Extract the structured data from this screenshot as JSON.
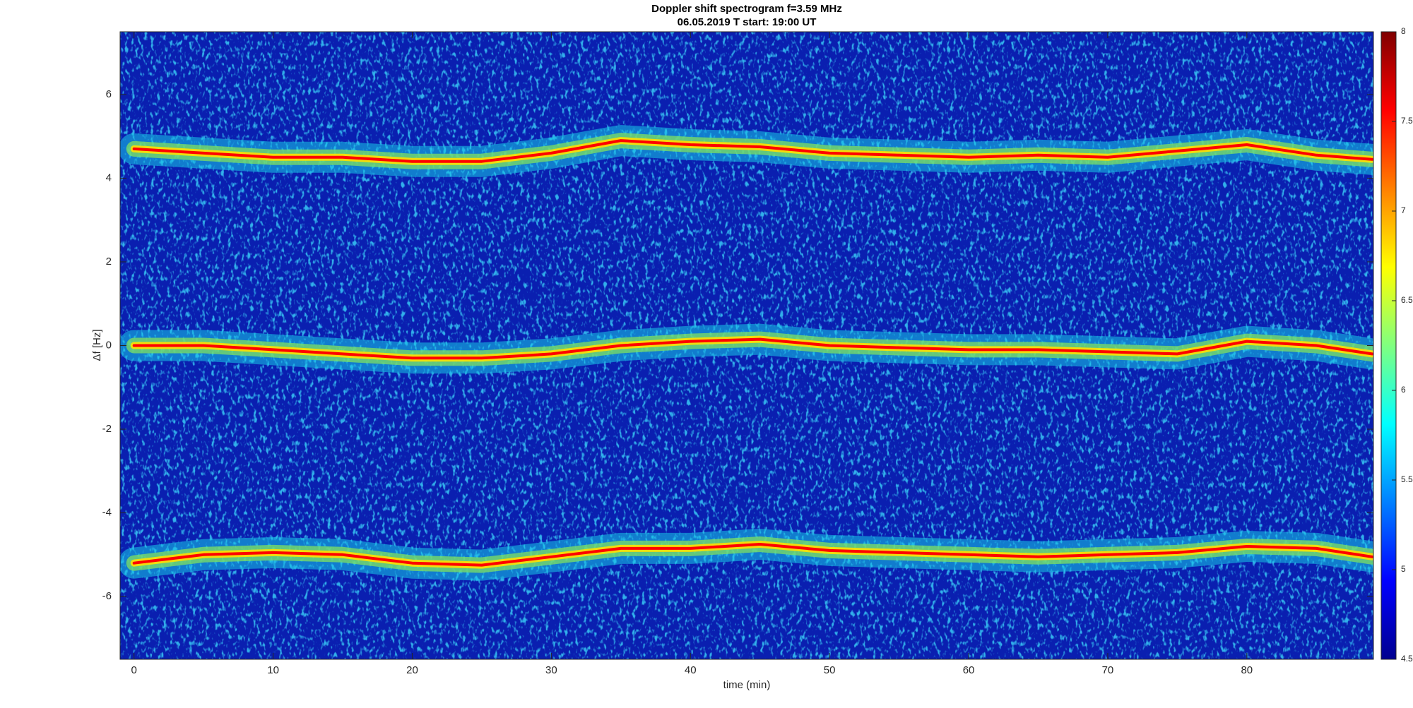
{
  "chart_data": {
    "type": "spectrogram",
    "title": "Doppler shift spectrogram f=3.59 MHz",
    "subtitle": "06.05.2019   T start: 19:00 UT",
    "x_label": "time (min)",
    "y_label": "Δf [Hz]",
    "x": [
      0,
      5,
      10,
      15,
      20,
      25,
      30,
      35,
      40,
      45,
      50,
      55,
      60,
      65,
      70,
      75,
      80,
      85,
      89
    ],
    "series": [
      {
        "color": "#ff0000",
        "values": [
          4.7,
          4.6,
          4.5,
          4.5,
          4.4,
          4.4,
          4.6,
          4.9,
          4.8,
          4.75,
          4.6,
          4.55,
          4.5,
          4.55,
          4.5,
          4.65,
          4.8,
          4.55,
          4.45
        ]
      },
      {
        "color": "#ff0000",
        "values": [
          0.0,
          0.0,
          -0.1,
          -0.2,
          -0.3,
          -0.3,
          -0.2,
          0.0,
          0.1,
          0.15,
          0.0,
          -0.05,
          -0.1,
          -0.1,
          -0.15,
          -0.2,
          0.1,
          0.0,
          -0.2
        ]
      },
      {
        "color": "#ff0000",
        "values": [
          -5.2,
          -5.0,
          -4.95,
          -5.0,
          -5.2,
          -5.25,
          -5.05,
          -4.85,
          -4.85,
          -4.75,
          -4.9,
          -4.95,
          -5.0,
          -5.05,
          -5.0,
          -4.95,
          -4.8,
          -4.85,
          -5.05
        ]
      }
    ],
    "xlim": [
      -1,
      89.1
    ],
    "ylim": [
      -7.5,
      7.5
    ],
    "xticks": [
      0,
      10,
      20,
      30,
      40,
      50,
      60,
      70,
      80
    ],
    "yticks": [
      -6,
      -4,
      -2,
      0,
      2,
      4,
      6
    ],
    "clim": [
      4.5,
      8
    ],
    "cticks": [
      4.5,
      5,
      5.5,
      6,
      6.5,
      7,
      7.5,
      8
    ],
    "colormap": "jet"
  }
}
